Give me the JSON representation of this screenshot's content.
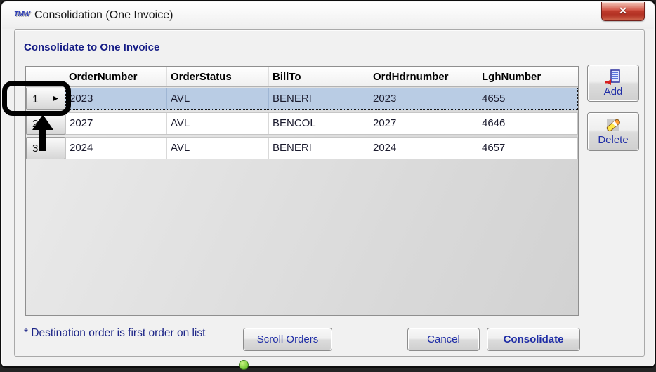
{
  "window": {
    "title": "Consolidation (One Invoice)",
    "app_logo_text": "TMW",
    "close_glyph": "✕"
  },
  "panel": {
    "heading": "Consolidate to One Invoice",
    "footnote": "* Destination order is first order on list"
  },
  "table": {
    "columns": [
      "OrderNumber",
      "OrderStatus",
      "BillTo",
      "OrdHdrnumber",
      "LghNumber"
    ],
    "rows": [
      {
        "num": "1",
        "selected": true,
        "marker": "▶",
        "cells": [
          "2023",
          "AVL",
          "BENERI",
          "2023",
          "4655"
        ]
      },
      {
        "num": "2",
        "selected": false,
        "marker": "",
        "cells": [
          "2027",
          "AVL",
          "BENCOL",
          "2027",
          "4646"
        ]
      },
      {
        "num": "3",
        "selected": false,
        "marker": "",
        "cells": [
          "2024",
          "AVL",
          "BENERI",
          "2024",
          "4657"
        ]
      }
    ]
  },
  "buttons": {
    "add": "Add",
    "delete": "Delete",
    "scroll_orders": "Scroll Orders",
    "cancel": "Cancel",
    "consolidate": "Consolidate"
  },
  "icons": {
    "app": "tmw-logo-icon",
    "close": "close-x-icon",
    "add": "document-add-icon",
    "delete": "eraser-icon",
    "row_marker": "current-row-arrow-icon"
  },
  "colors": {
    "label_blue": "#1f2da6",
    "heading_navy": "#161d86",
    "selected_row": "#b9cce4",
    "close_red": "#bd3a2b",
    "annotation_black": "#000000",
    "handle_green": "#7fd03f"
  }
}
